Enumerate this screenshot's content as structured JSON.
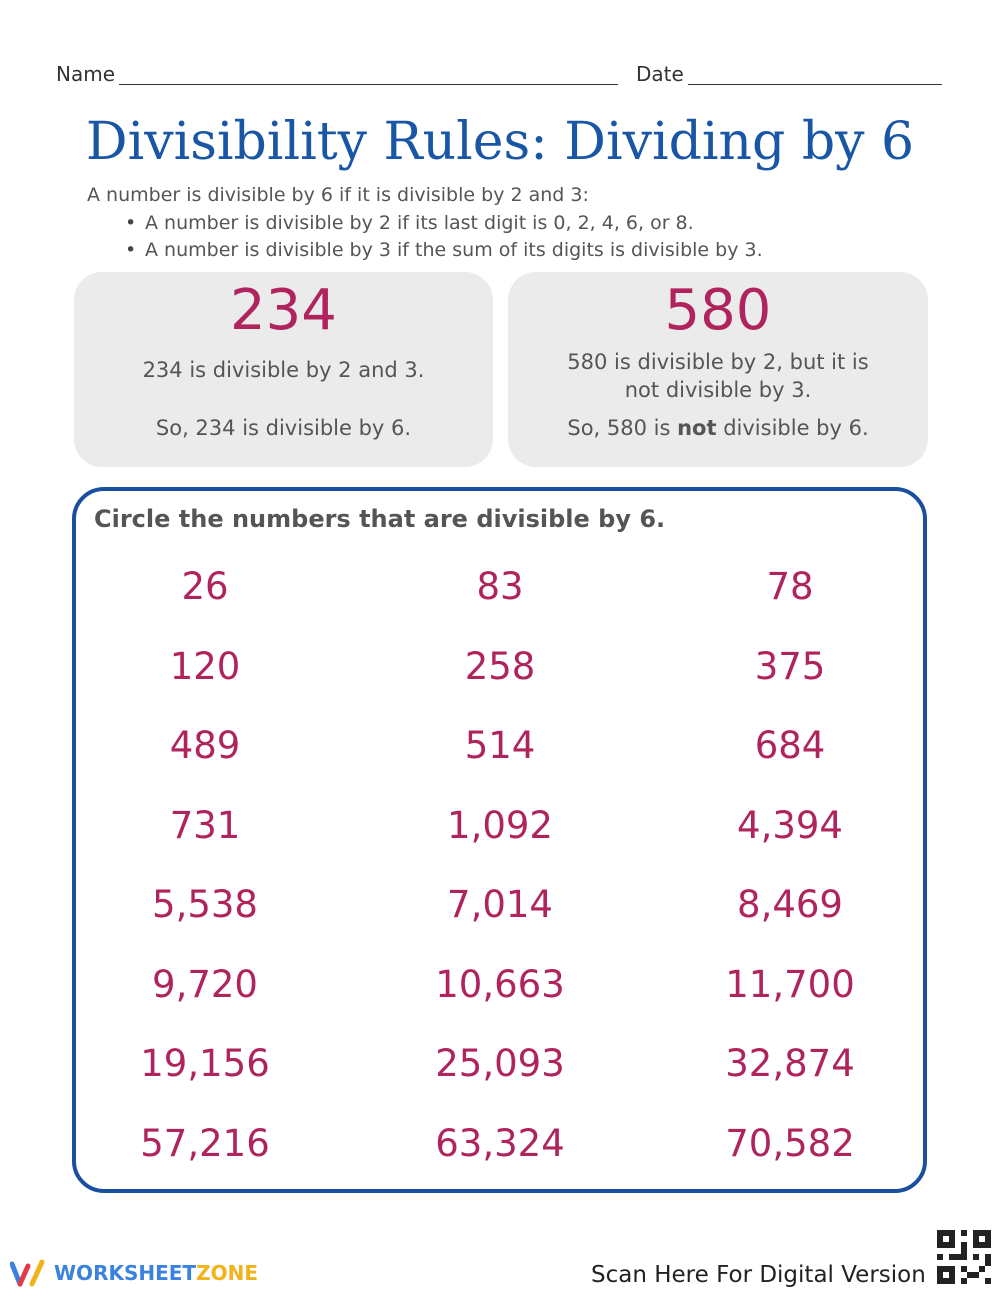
{
  "header": {
    "name_label": "Name",
    "date_label": "Date"
  },
  "title": "Divisibility Rules: Dividing by 6",
  "intro": "A number is divisible by 6 if it is divisible by 2 and 3:",
  "bullets": [
    "A number is divisible by 2 if its last digit is 0, 2, 4, 6, or 8.",
    "A number is divisible by 3 if the sum of its digits is divisible by 3."
  ],
  "examples": [
    {
      "number": "234",
      "line1": "234 is divisible by 2 and 3.",
      "line2": "So, 234 is divisible by 6."
    },
    {
      "number": "580",
      "line1": "580 is divisible by 2, but it is not divisible by 3.",
      "line2_pre": "So, 580 is ",
      "line2_bold": "not",
      "line2_post": " divisible by 6."
    }
  ],
  "exercise": {
    "instruction": "Circle the numbers that are divisible by 6.",
    "numbers": [
      [
        "26",
        "83",
        "78"
      ],
      [
        "120",
        "258",
        "375"
      ],
      [
        "489",
        "514",
        "684"
      ],
      [
        "731",
        "1,092",
        "4,394"
      ],
      [
        "5,538",
        "7,014",
        "8,469"
      ],
      [
        "9,720",
        "10,663",
        "11,700"
      ],
      [
        "19,156",
        "25,093",
        "32,874"
      ],
      [
        "57,216",
        "63,324",
        "70,582"
      ]
    ]
  },
  "footer": {
    "brand_left": "WORKSHEET",
    "brand_right": "ZONE",
    "scan_text": "Scan Here For Digital Version"
  },
  "colors": {
    "title": "#1a56a6",
    "numbers": "#b0245e",
    "frame": "#1a4fa0",
    "card": "#ebebeb"
  }
}
